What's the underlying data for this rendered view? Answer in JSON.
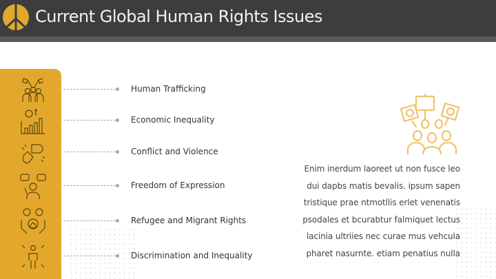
{
  "header": {
    "title": "Current Global Human Rights Issues",
    "logo_icon": "peace-sign-icon"
  },
  "colors": {
    "accent": "#E3A82B",
    "header": "#3D3D3D",
    "text": "#333333"
  },
  "issues": [
    {
      "label": "Human Trafficking",
      "icon": "people-with-flags-icon"
    },
    {
      "label": "Economic Inequality",
      "icon": "money-bar-chart-icon"
    },
    {
      "label": "Conflict and Violence",
      "icon": "fists-clash-icon"
    },
    {
      "label": "Freedom of Expression",
      "icon": "person-speech-faces-icon"
    },
    {
      "label": "Refugee and Migrant Rights",
      "icon": "hands-home-icon"
    },
    {
      "label": "Discrimination and Inequality",
      "icon": "person-pointing-hands-icon"
    }
  ],
  "description": "Enim inerdum laoreet ut non fusce leo dui dapbs matis bevalis. ipsum sapen tristique prae ntmotllis erlet venenatis psodales et bcurabtur falmiquet lectus lacinia ultriies nec curae mus  vehcula pharet nasurnte. etiam penatius nulla",
  "illustration": "protest-crowd-icon"
}
